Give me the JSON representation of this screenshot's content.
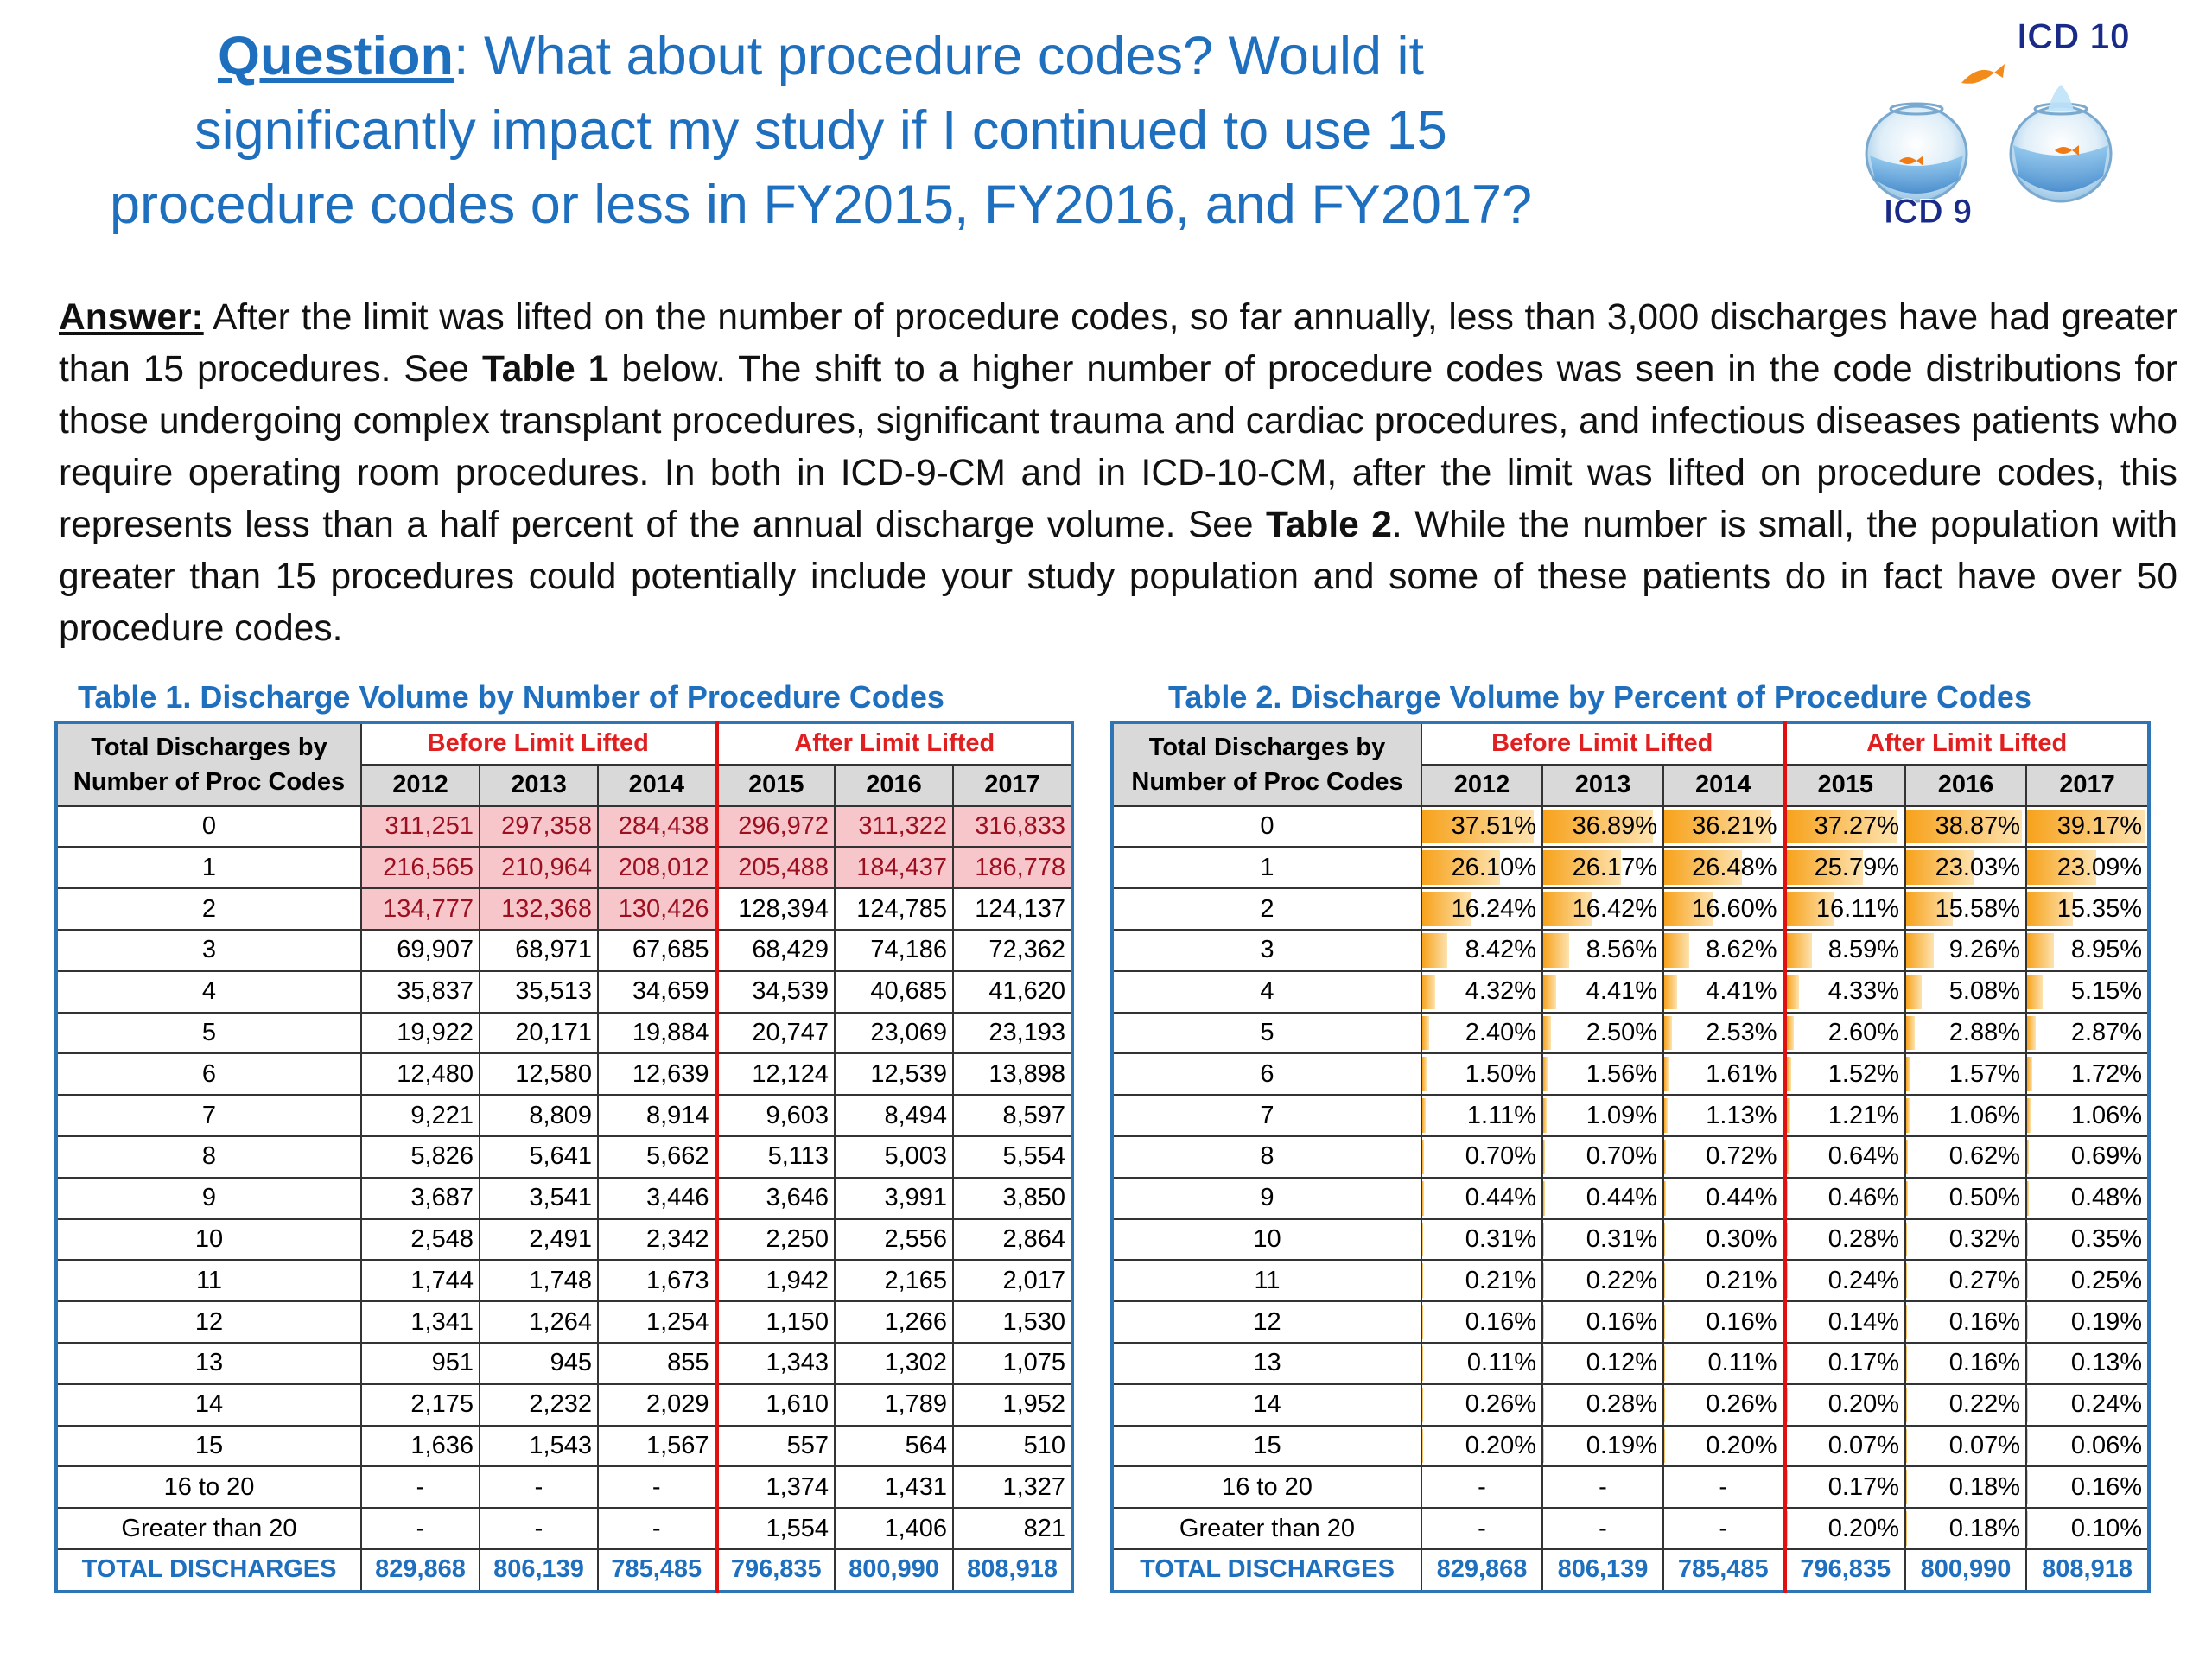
{
  "header": {
    "question_label": "Question",
    "question_text": ":  What about procedure codes? Would it significantly impact my study if I continued to use 15 procedure codes or less in FY2015, FY2016, and FY2017?",
    "logo": {
      "top_label": "ICD 10",
      "bottom_label": "ICD 9"
    }
  },
  "answer": {
    "label": "Answer:",
    "p1": "  After the limit was lifted on the number of procedure codes, so far annually, less than 3,000 discharges have had greater than 15 procedures. See ",
    "table1_ref": "Table 1",
    "p2": " below. The shift to a higher number of procedure codes was seen in the code distributions for those undergoing complex transplant procedures, significant trauma and cardiac procedures, and infectious diseases patients who require operating room procedures. In both in ICD-9-CM and in ICD-10-CM, after the limit was lifted on procedure codes, this represents less than a half percent of the annual discharge volume. See ",
    "table2_ref": "Table 2",
    "p3": ". While the number is small, the population with greater than 15 procedures could potentially include your study population and some of these patients do in fact have over 50 procedure codes."
  },
  "table1": {
    "caption": "Table 1. Discharge Volume by Number of Procedure Codes",
    "row_header": "Total Discharges by Number of Proc Codes",
    "before_label": "Before Limit Lifted",
    "after_label": "After Limit Lifted",
    "years": [
      "2012",
      "2013",
      "2014",
      "2015",
      "2016",
      "2017"
    ],
    "highlight_color": "#f6c6cb",
    "rows": [
      {
        "label": "0",
        "values": [
          "311,251",
          "297,358",
          "284,438",
          "296,972",
          "311,322",
          "316,833"
        ],
        "highlight": [
          true,
          true,
          true,
          true,
          true,
          true
        ]
      },
      {
        "label": "1",
        "values": [
          "216,565",
          "210,964",
          "208,012",
          "205,488",
          "184,437",
          "186,778"
        ],
        "highlight": [
          true,
          true,
          true,
          true,
          true,
          true
        ]
      },
      {
        "label": "2",
        "values": [
          "134,777",
          "132,368",
          "130,426",
          "128,394",
          "124,785",
          "124,137"
        ],
        "highlight": [
          true,
          true,
          true,
          false,
          false,
          false
        ]
      },
      {
        "label": "3",
        "values": [
          "69,907",
          "68,971",
          "67,685",
          "68,429",
          "74,186",
          "72,362"
        ]
      },
      {
        "label": "4",
        "values": [
          "35,837",
          "35,513",
          "34,659",
          "34,539",
          "40,685",
          "41,620"
        ]
      },
      {
        "label": "5",
        "values": [
          "19,922",
          "20,171",
          "19,884",
          "20,747",
          "23,069",
          "23,193"
        ]
      },
      {
        "label": "6",
        "values": [
          "12,480",
          "12,580",
          "12,639",
          "12,124",
          "12,539",
          "13,898"
        ]
      },
      {
        "label": "7",
        "values": [
          "9,221",
          "8,809",
          "8,914",
          "9,603",
          "8,494",
          "8,597"
        ]
      },
      {
        "label": "8",
        "values": [
          "5,826",
          "5,641",
          "5,662",
          "5,113",
          "5,003",
          "5,554"
        ]
      },
      {
        "label": "9",
        "values": [
          "3,687",
          "3,541",
          "3,446",
          "3,646",
          "3,991",
          "3,850"
        ]
      },
      {
        "label": "10",
        "values": [
          "2,548",
          "2,491",
          "2,342",
          "2,250",
          "2,556",
          "2,864"
        ]
      },
      {
        "label": "11",
        "values": [
          "1,744",
          "1,748",
          "1,673",
          "1,942",
          "2,165",
          "2,017"
        ]
      },
      {
        "label": "12",
        "values": [
          "1,341",
          "1,264",
          "1,254",
          "1,150",
          "1,266",
          "1,530"
        ]
      },
      {
        "label": "13",
        "values": [
          "951",
          "945",
          "855",
          "1,343",
          "1,302",
          "1,075"
        ]
      },
      {
        "label": "14",
        "values": [
          "2,175",
          "2,232",
          "2,029",
          "1,610",
          "1,789",
          "1,952"
        ]
      },
      {
        "label": "15",
        "values": [
          "1,636",
          "1,543",
          "1,567",
          "557",
          "564",
          "510"
        ]
      },
      {
        "label": "16 to 20",
        "values": [
          "-",
          "-",
          "-",
          "1,374",
          "1,431",
          "1,327"
        ]
      },
      {
        "label": "Greater than 20",
        "values": [
          "-",
          "-",
          "-",
          "1,554",
          "1,406",
          "821"
        ]
      }
    ],
    "total": {
      "label": "TOTAL DISCHARGES",
      "values": [
        "829,868",
        "806,139",
        "785,485",
        "796,835",
        "800,990",
        "808,918"
      ]
    }
  },
  "table2": {
    "caption": "Table 2. Discharge Volume by Percent of Procedure Codes",
    "row_header": "Total Discharges by Number of Proc Codes",
    "before_label": "Before Limit Lifted",
    "after_label": "After Limit Lifted",
    "years": [
      "2012",
      "2013",
      "2014",
      "2015",
      "2016",
      "2017"
    ],
    "rows": [
      {
        "label": "0",
        "values": [
          "37.51%",
          "36.89%",
          "36.21%",
          "37.27%",
          "38.87%",
          "39.17%"
        ],
        "shares": [
          37.51,
          36.89,
          36.21,
          37.27,
          38.87,
          39.17
        ]
      },
      {
        "label": "1",
        "values": [
          "26.10%",
          "26.17%",
          "26.48%",
          "25.79%",
          "23.03%",
          "23.09%"
        ],
        "shares": [
          26.1,
          26.17,
          26.48,
          25.79,
          23.03,
          23.09
        ]
      },
      {
        "label": "2",
        "values": [
          "16.24%",
          "16.42%",
          "16.60%",
          "16.11%",
          "15.58%",
          "15.35%"
        ],
        "shares": [
          16.24,
          16.42,
          16.6,
          16.11,
          15.58,
          15.35
        ]
      },
      {
        "label": "3",
        "values": [
          "8.42%",
          "8.56%",
          "8.62%",
          "8.59%",
          "9.26%",
          "8.95%"
        ],
        "shares": [
          8.42,
          8.56,
          8.62,
          8.59,
          9.26,
          8.95
        ]
      },
      {
        "label": "4",
        "values": [
          "4.32%",
          "4.41%",
          "4.41%",
          "4.33%",
          "5.08%",
          "5.15%"
        ],
        "shares": [
          4.32,
          4.41,
          4.41,
          4.33,
          5.08,
          5.15
        ]
      },
      {
        "label": "5",
        "values": [
          "2.40%",
          "2.50%",
          "2.53%",
          "2.60%",
          "2.88%",
          "2.87%"
        ],
        "shares": [
          2.4,
          2.5,
          2.53,
          2.6,
          2.88,
          2.87
        ]
      },
      {
        "label": "6",
        "values": [
          "1.50%",
          "1.56%",
          "1.61%",
          "1.52%",
          "1.57%",
          "1.72%"
        ],
        "shares": [
          1.5,
          1.56,
          1.61,
          1.52,
          1.57,
          1.72
        ]
      },
      {
        "label": "7",
        "values": [
          "1.11%",
          "1.09%",
          "1.13%",
          "1.21%",
          "1.06%",
          "1.06%"
        ],
        "shares": [
          1.11,
          1.09,
          1.13,
          1.21,
          1.06,
          1.06
        ]
      },
      {
        "label": "8",
        "values": [
          "0.70%",
          "0.70%",
          "0.72%",
          "0.64%",
          "0.62%",
          "0.69%"
        ],
        "shares": [
          0.7,
          0.7,
          0.72,
          0.64,
          0.62,
          0.69
        ]
      },
      {
        "label": "9",
        "values": [
          "0.44%",
          "0.44%",
          "0.44%",
          "0.46%",
          "0.50%",
          "0.48%"
        ],
        "shares": [
          0.44,
          0.44,
          0.44,
          0.46,
          0.5,
          0.48
        ]
      },
      {
        "label": "10",
        "values": [
          "0.31%",
          "0.31%",
          "0.30%",
          "0.28%",
          "0.32%",
          "0.35%"
        ],
        "shares": [
          0.31,
          0.31,
          0.3,
          0.28,
          0.32,
          0.35
        ]
      },
      {
        "label": "11",
        "values": [
          "0.21%",
          "0.22%",
          "0.21%",
          "0.24%",
          "0.27%",
          "0.25%"
        ],
        "shares": [
          0.21,
          0.22,
          0.21,
          0.24,
          0.27,
          0.25
        ]
      },
      {
        "label": "12",
        "values": [
          "0.16%",
          "0.16%",
          "0.16%",
          "0.14%",
          "0.16%",
          "0.19%"
        ],
        "shares": [
          0.16,
          0.16,
          0.16,
          0.14,
          0.16,
          0.19
        ]
      },
      {
        "label": "13",
        "values": [
          "0.11%",
          "0.12%",
          "0.11%",
          "0.17%",
          "0.16%",
          "0.13%"
        ],
        "shares": [
          0.11,
          0.12,
          0.11,
          0.17,
          0.16,
          0.13
        ]
      },
      {
        "label": "14",
        "values": [
          "0.26%",
          "0.28%",
          "0.26%",
          "0.20%",
          "0.22%",
          "0.24%"
        ],
        "shares": [
          0.26,
          0.28,
          0.26,
          0.2,
          0.22,
          0.24
        ]
      },
      {
        "label": "15",
        "values": [
          "0.20%",
          "0.19%",
          "0.20%",
          "0.07%",
          "0.07%",
          "0.06%"
        ],
        "shares": [
          0.2,
          0.19,
          0.2,
          0.07,
          0.07,
          0.06
        ]
      },
      {
        "label": "16 to 20",
        "values": [
          "-",
          "-",
          "-",
          "0.17%",
          "0.18%",
          "0.16%"
        ],
        "shares": [
          null,
          null,
          null,
          0.17,
          0.18,
          0.16
        ]
      },
      {
        "label": "Greater than 20",
        "values": [
          "-",
          "-",
          "-",
          "0.20%",
          "0.18%",
          "0.10%"
        ],
        "shares": [
          null,
          null,
          null,
          0.2,
          0.18,
          0.1
        ]
      }
    ],
    "total": {
      "label": "TOTAL DISCHARGES",
      "values": [
        "829,868",
        "806,139",
        "785,485",
        "796,835",
        "800,990",
        "808,918"
      ]
    }
  },
  "colors": {
    "title_blue": "#1f6fbf",
    "divider_red": "#e01010",
    "databar_orange": "#f7a21b"
  }
}
